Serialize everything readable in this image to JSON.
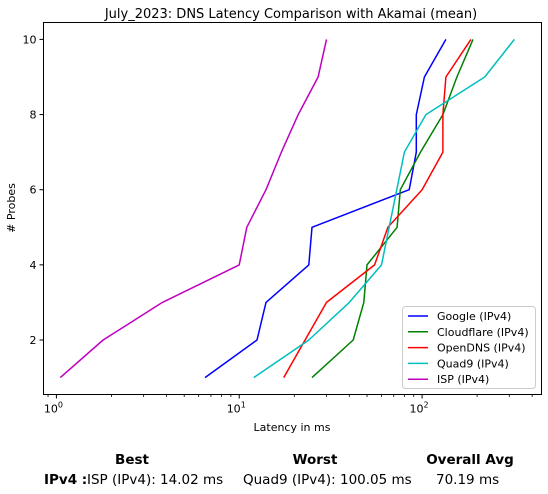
{
  "chart_data": {
    "type": "line",
    "title": "July_2023: DNS Latency Comparison with Akamai (mean)",
    "xlabel": "Latency in ms",
    "ylabel": "# Probes",
    "x_scale": "log",
    "xlim": [
      0.85,
      450
    ],
    "ylim": [
      0.55,
      10.45
    ],
    "x_ticks": [
      {
        "value": 1,
        "base": "10",
        "exp": "0"
      },
      {
        "value": 10,
        "base": "10",
        "exp": "1"
      },
      {
        "value": 100,
        "base": "10",
        "exp": "2"
      }
    ],
    "y_ticks": [
      2,
      4,
      6,
      8,
      10
    ],
    "legend_position": "lower-right",
    "grid": false,
    "series": [
      {
        "name": "Google (IPv4)",
        "color": "#0000ff",
        "x": [
          6.5,
          12.5,
          14,
          24,
          25,
          85,
          93,
          93,
          103,
          135
        ],
        "y": [
          1,
          2,
          3,
          4,
          5,
          6,
          7,
          8,
          9,
          10
        ]
      },
      {
        "name": "Cloudflare (IPv4)",
        "color": "#008000",
        "x": [
          25,
          42,
          48,
          50,
          73,
          76,
          98,
          130,
          155,
          190
        ],
        "y": [
          1,
          2,
          3,
          4,
          5,
          6,
          7,
          8,
          9,
          10
        ]
      },
      {
        "name": "OpenDNS (IPv4)",
        "color": "#ff0000",
        "x": [
          17.5,
          30,
          55,
          65,
          100,
          130,
          130,
          135,
          185
        ],
        "y": [
          1,
          3,
          4,
          5,
          6,
          7,
          8,
          9,
          10
        ]
      },
      {
        "name": "Quad9 (IPv4)",
        "color": "#00bfbf",
        "x": [
          12,
          24,
          40,
          60,
          80,
          105,
          220,
          320
        ],
        "y": [
          1,
          2,
          3,
          4,
          7,
          8,
          9,
          10
        ]
      },
      {
        "name": "ISP (IPv4)",
        "color": "#bf00bf",
        "x": [
          1.05,
          1.8,
          3.8,
          10,
          11,
          14,
          17,
          21,
          27,
          30
        ],
        "y": [
          1,
          2,
          3,
          4,
          5,
          6,
          7,
          8,
          9,
          10
        ]
      }
    ]
  },
  "summary": {
    "best_header": "Best",
    "worst_header": "Worst",
    "avg_header": "Overall Avg",
    "row_label": "IPv4 :",
    "best_value": "ISP (IPv4): 14.02 ms",
    "worst_value": "Quad9 (IPv4): 100.05 ms",
    "avg_value": "70.19 ms"
  }
}
